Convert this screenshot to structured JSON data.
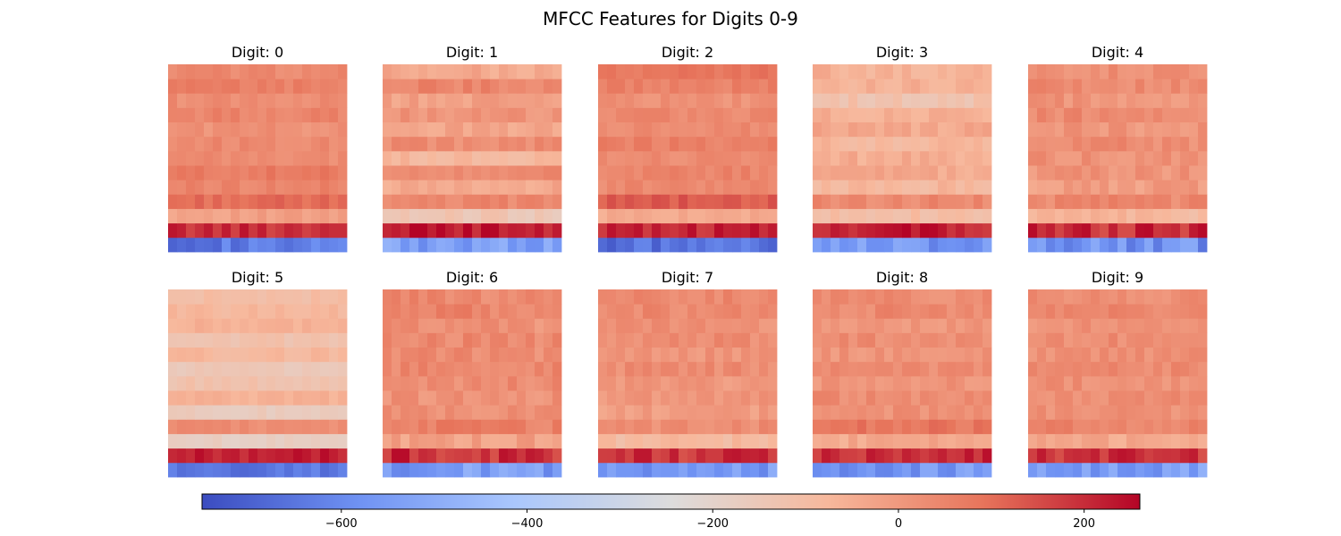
{
  "chart_data": {
    "type": "heatmap",
    "title": "MFCC Features for Digits 0-9",
    "colormap": "coolwarm",
    "colormap_stops": [
      "#3b4cc0",
      "#6f92f3",
      "#aac7fd",
      "#dddcdc",
      "#f7b89c",
      "#e7745b",
      "#b40426"
    ],
    "rows_per_panel": 13,
    "frames_per_panel": 20,
    "color_range": [
      -750,
      260
    ],
    "colorbar": {
      "orientation": "horizontal",
      "ticks": [
        -600,
        -400,
        -200,
        0,
        200
      ],
      "tick_labels": [
        "−600",
        "−400",
        "−200",
        "0",
        "200"
      ]
    },
    "panels": [
      {
        "title": "Digit: 0",
        "row_means": [
          -640,
          200,
          -20,
          100,
          50,
          70,
          30,
          40,
          20,
          50,
          30,
          60,
          40
        ],
        "variation": 25
      },
      {
        "title": "Digit: 1",
        "row_means": [
          -540,
          230,
          -140,
          40,
          -40,
          40,
          -80,
          30,
          -30,
          10,
          -20,
          50,
          -40
        ],
        "variation": 30
      },
      {
        "title": "Digit: 2",
        "row_means": [
          -660,
          210,
          -40,
          130,
          40,
          50,
          30,
          60,
          40,
          40,
          20,
          60,
          80
        ],
        "variation": 25
      },
      {
        "title": "Digit: 3",
        "row_means": [
          -560,
          220,
          -100,
          40,
          -80,
          -40,
          -50,
          -80,
          -40,
          -60,
          -120,
          -60,
          -60
        ],
        "variation": 30
      },
      {
        "title": "Digit: 4",
        "row_means": [
          -580,
          200,
          -80,
          40,
          -10,
          10,
          20,
          30,
          10,
          40,
          10,
          40,
          20
        ],
        "variation": 35
      },
      {
        "title": "Digit: 5",
        "row_means": [
          -650,
          220,
          -180,
          30,
          -160,
          -60,
          -120,
          -150,
          -80,
          -120,
          -60,
          -80,
          -100
        ],
        "variation": 20
      },
      {
        "title": "Digit: 6",
        "row_means": [
          -540,
          200,
          -20,
          60,
          20,
          20,
          30,
          40,
          30,
          40,
          20,
          50,
          40
        ],
        "variation": 35
      },
      {
        "title": "Digit: 7",
        "row_means": [
          -560,
          190,
          -90,
          30,
          -10,
          10,
          0,
          30,
          10,
          30,
          20,
          40,
          40
        ],
        "variation": 30
      },
      {
        "title": "Digit: 8",
        "row_means": [
          -560,
          200,
          -40,
          80,
          20,
          30,
          10,
          30,
          10,
          30,
          10,
          40,
          30
        ],
        "variation": 30
      },
      {
        "title": "Digit: 9",
        "row_means": [
          -540,
          190,
          -40,
          50,
          20,
          30,
          20,
          40,
          20,
          30,
          20,
          40,
          30
        ],
        "variation": 30
      }
    ]
  }
}
